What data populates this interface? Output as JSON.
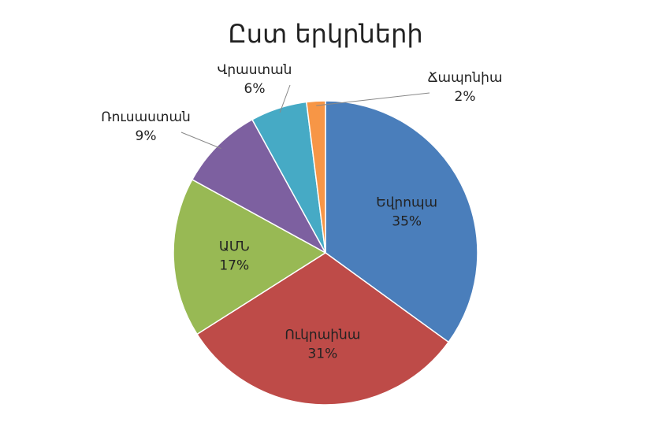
{
  "chart_data": {
    "type": "pie",
    "title": "Ըստ երկրների",
    "categories": [
      "Եվրոպա",
      "Ուկրաինա",
      "ԱՄՆ",
      "Ռուսաստան",
      "Վրաստան",
      "Ճապոնիա"
    ],
    "values": [
      35,
      31,
      17,
      9,
      6,
      2
    ],
    "value_labels": [
      "35%",
      "31%",
      "17%",
      "9%",
      "6%",
      "2%"
    ],
    "colors": [
      "#4a7ebb",
      "#be4b48",
      "#98b954",
      "#7d60a0",
      "#46aac5",
      "#f79646"
    ]
  }
}
